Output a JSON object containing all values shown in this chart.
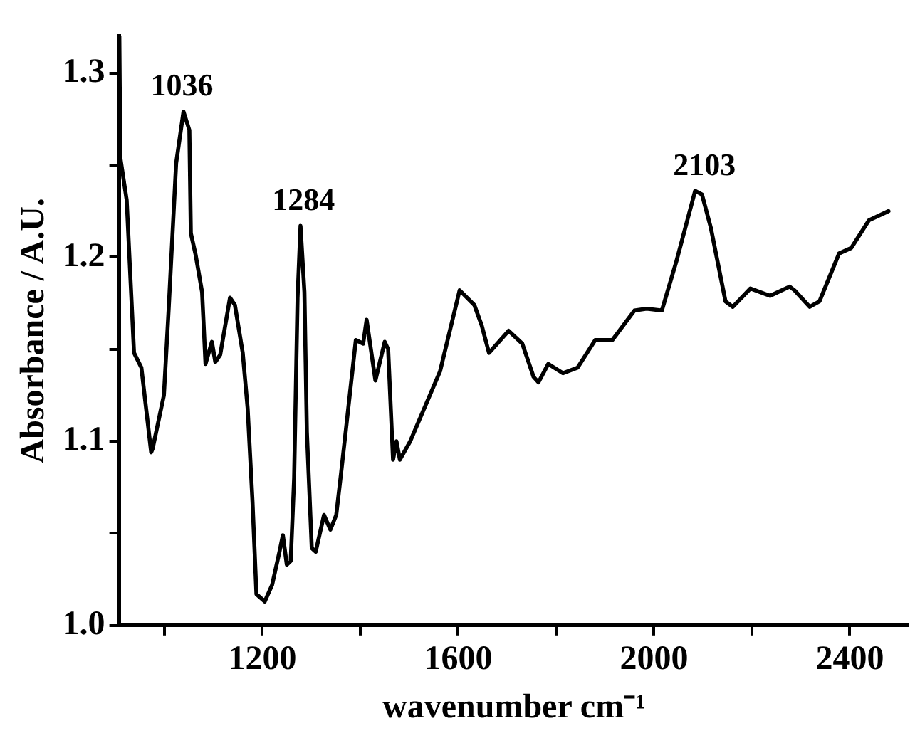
{
  "chart_data": {
    "type": "line",
    "xlabel": "wavenumber cm⁻¹",
    "ylabel": "Absorbance / A.U.",
    "x": [
      908,
      910,
      923,
      938,
      953,
      973,
      976,
      999,
      1009,
      1024,
      1039,
      1051,
      1054,
      1064,
      1077,
      1084,
      1097,
      1104,
      1114,
      1134,
      1144,
      1160,
      1170,
      1180,
      1188,
      1205,
      1220,
      1235,
      1242,
      1250,
      1258,
      1265,
      1272,
      1278,
      1286,
      1291,
      1301,
      1309,
      1326,
      1339,
      1351,
      1361,
      1391,
      1406,
      1413,
      1431,
      1450,
      1457,
      1467,
      1474,
      1481,
      1502,
      1563,
      1603,
      1633,
      1648,
      1663,
      1703,
      1731,
      1754,
      1764,
      1784,
      1814,
      1844,
      1880,
      1915,
      1960,
      1985,
      2016,
      2046,
      2084,
      2098,
      2116,
      2146,
      2161,
      2197,
      2237,
      2277,
      2287,
      2318,
      2338,
      2378,
      2403,
      2439,
      2479
    ],
    "series": [
      {
        "color": "#000000",
        "values": [
          1.32,
          1.254,
          1.231,
          1.148,
          1.14,
          1.094,
          1.096,
          1.125,
          1.173,
          1.251,
          1.279,
          1.269,
          1.213,
          1.201,
          1.181,
          1.142,
          1.154,
          1.143,
          1.147,
          1.178,
          1.174,
          1.148,
          1.118,
          1.067,
          1.017,
          1.013,
          1.022,
          1.04,
          1.049,
          1.033,
          1.035,
          1.08,
          1.178,
          1.217,
          1.181,
          1.105,
          1.042,
          1.04,
          1.06,
          1.052,
          1.06,
          1.083,
          1.155,
          1.153,
          1.166,
          1.133,
          1.154,
          1.15,
          1.09,
          1.1,
          1.09,
          1.1,
          1.138,
          1.182,
          1.174,
          1.163,
          1.148,
          1.16,
          1.153,
          1.135,
          1.132,
          1.142,
          1.137,
          1.14,
          1.155,
          1.155,
          1.171,
          1.172,
          1.171,
          1.198,
          1.236,
          1.234,
          1.216,
          1.176,
          1.173,
          1.183,
          1.179,
          1.184,
          1.182,
          1.173,
          1.176,
          1.202,
          1.205,
          1.22,
          1.225
        ]
      }
    ],
    "xlim": [
      908,
      2520
    ],
    "ylim": [
      1.0,
      1.32
    ],
    "xticks": [
      {
        "value": 1000,
        "label": null
      },
      1200,
      {
        "value": 1400,
        "label": null
      },
      1600,
      {
        "value": 1800,
        "label": null
      },
      2000,
      {
        "value": 2200,
        "label": null
      },
      2400
    ],
    "yticks": [
      {
        "value": 1.0,
        "label": "1.0"
      },
      {
        "value": 1.05,
        "label": null
      },
      1.1,
      {
        "value": 1.15,
        "label": null
      },
      1.2,
      {
        "value": 1.25,
        "label": null
      },
      1.3
    ],
    "annotations": [
      {
        "text": "1036",
        "x": 1036,
        "y": 1.279
      },
      {
        "text": "1284",
        "x": 1284,
        "y": 1.217
      },
      {
        "text": "2103",
        "x": 2103,
        "y": 1.236
      }
    ],
    "grid": false,
    "legend": false,
    "marker": "none",
    "line_style": "solid"
  }
}
